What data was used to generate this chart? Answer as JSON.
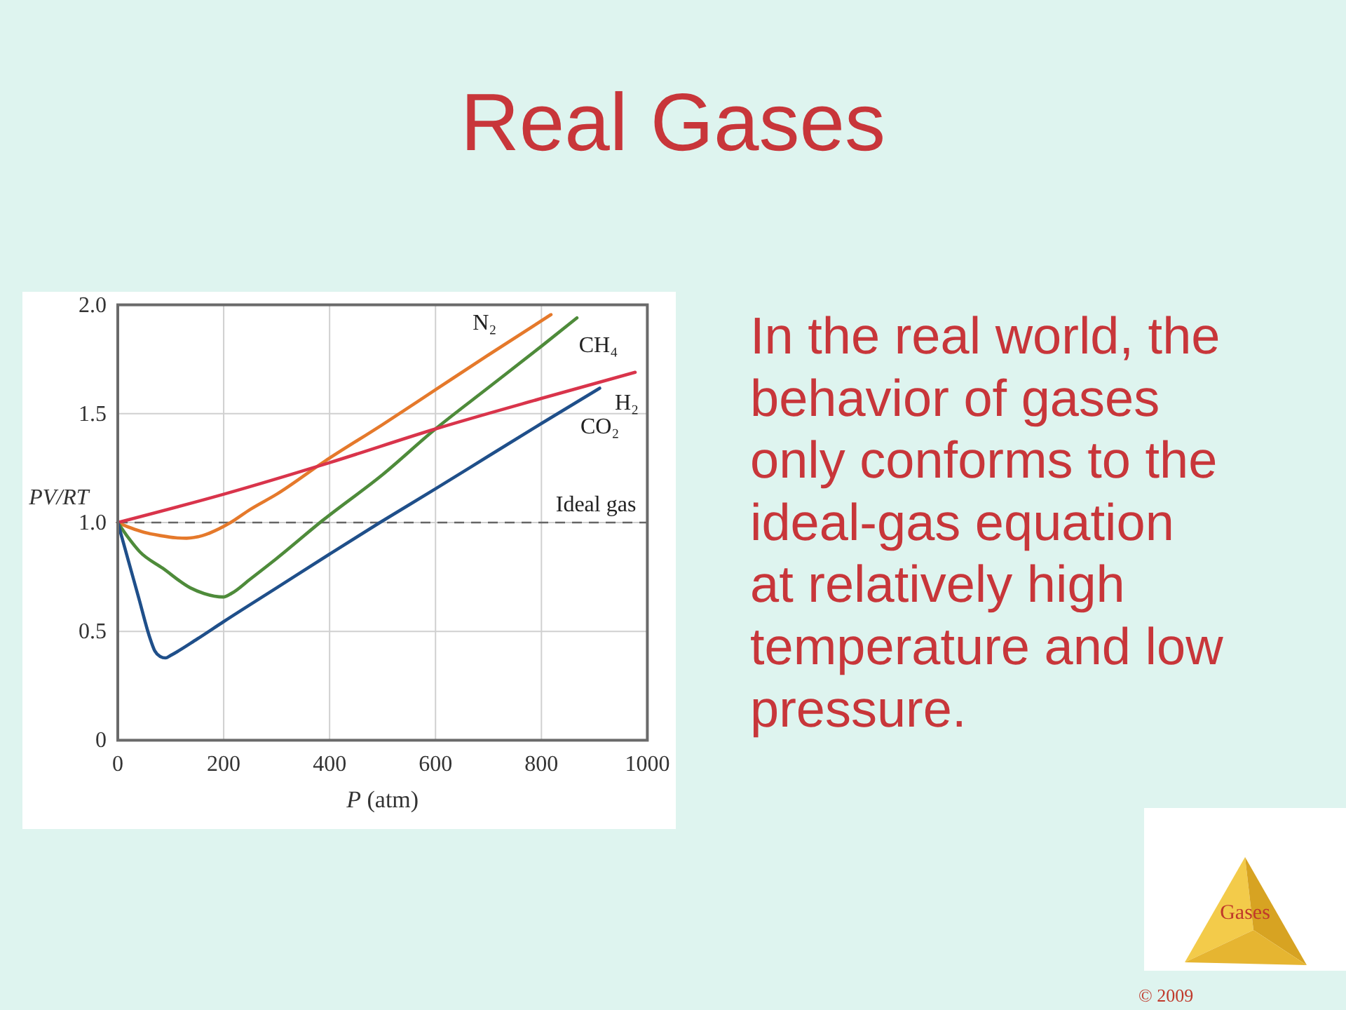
{
  "chart_data": {
    "type": "line",
    "title": "Real Gases",
    "xlabel": "P (atm)",
    "ylabel": "PV/RT",
    "xlim": [
      0,
      1000
    ],
    "ylim": [
      0,
      2
    ],
    "xticks": [
      0,
      200,
      400,
      600,
      800,
      1000
    ],
    "yticks": [
      0,
      0.5,
      {
        "value": 1,
        "label": "1.0"
      },
      1.5,
      {
        "value": 2,
        "label": "2.0"
      }
    ],
    "grid": true,
    "legend": false,
    "series": [
      {
        "name": "N₂",
        "color": "#e5792b",
        "x": [
          0,
          25,
          50,
          80,
          110,
          130,
          160,
          190,
          213,
          250,
          300,
          390,
          500,
          600,
          700,
          818
        ],
        "values": [
          1.0,
          0.975,
          0.955,
          0.94,
          0.93,
          0.928,
          0.94,
          0.97,
          1.0,
          1.06,
          1.13,
          1.28,
          1.45,
          1.61,
          1.77,
          1.955
        ]
      },
      {
        "name": "CH₄",
        "color": "#4e8b3a",
        "x": [
          0,
          20,
          41,
          85,
          137,
          163,
          199,
          215,
          250,
          300,
          387,
          500,
          600,
          700,
          800,
          867
        ],
        "values": [
          1.0,
          0.93,
          0.867,
          0.79,
          0.7,
          0.674,
          0.658,
          0.675,
          0.74,
          0.835,
          1.01,
          1.22,
          1.43,
          1.62,
          1.81,
          1.94
        ]
      },
      {
        "name": "H₂",
        "color": "#d9344b",
        "x": [
          0,
          200,
          400,
          600,
          800,
          977
        ],
        "values": [
          1.0,
          1.13,
          1.275,
          1.43,
          1.57,
          1.69
        ]
      },
      {
        "name": "CO₂",
        "color": "#1f4f8a",
        "x": [
          0,
          20,
          40,
          60,
          70,
          80,
          90,
          100,
          150,
          200,
          300,
          400,
          495,
          600,
          700,
          800,
          910
        ],
        "values": [
          1.0,
          0.825,
          0.65,
          0.475,
          0.41,
          0.385,
          0.378,
          0.39,
          0.465,
          0.545,
          0.7,
          0.855,
          1.0,
          1.155,
          1.305,
          1.455,
          1.617
        ]
      }
    ],
    "ref_lines": [
      {
        "axis": "y",
        "value": 1,
        "label": "Ideal gas",
        "line_style": "dashed",
        "color": "#666666"
      }
    ],
    "annotations": [
      "In the real world, the behavior of gases only conforms to the ideal-gas equation at relatively high temperature and low pressure.",
      "Gases",
      "© 2009"
    ]
  }
}
